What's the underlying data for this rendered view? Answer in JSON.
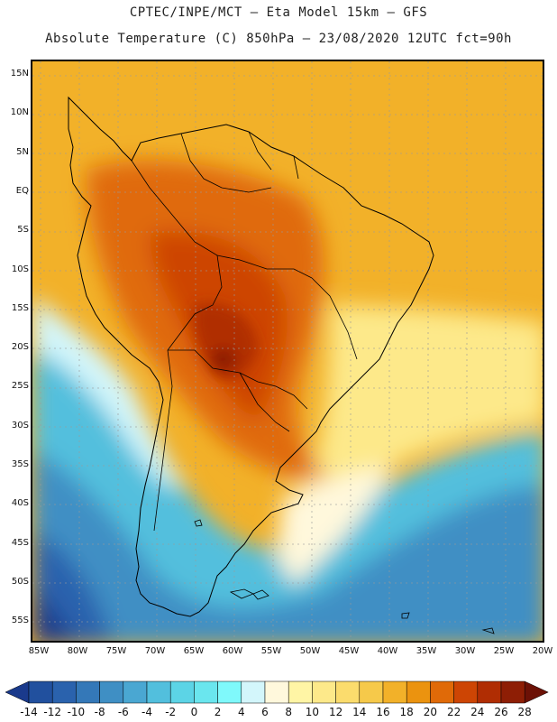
{
  "title": {
    "line1": "CPTEC/INPE/MCT –  Eta Model 15km – GFS",
    "line2": "Absolute Temperature (C) 850hPa – 23/08/2020 12UTC fct=90h"
  },
  "lat_labels": [
    "15N",
    "10N",
    "5N",
    "EQ",
    "5S",
    "10S",
    "15S",
    "20S",
    "25S",
    "30S",
    "35S",
    "40S",
    "45S",
    "50S",
    "55S"
  ],
  "lon_labels": [
    "85W",
    "80W",
    "75W",
    "70W",
    "65W",
    "60W",
    "55W",
    "50W",
    "45W",
    "40W",
    "35W",
    "30W",
    "25W",
    "20W"
  ],
  "colorbar": {
    "labels": [
      "-14",
      "-12",
      "-10",
      "-8",
      "-6",
      "-4",
      "-2",
      "0",
      "2",
      "4",
      "6",
      "8",
      "10",
      "12",
      "14",
      "16",
      "18",
      "20",
      "22",
      "24",
      "26",
      "28"
    ],
    "colors": [
      "#1a3a8c",
      "#21509e",
      "#2a62ad",
      "#3478b8",
      "#3f8fc4",
      "#4aa7d2",
      "#52bfdd",
      "#5cd4e6",
      "#6ae6ee",
      "#7ff9fb",
      "#d3f6fb",
      "#fff8dc",
      "#fff5a5",
      "#fde98a",
      "#fbdc6d",
      "#f6c94a",
      "#f2b129",
      "#eb930f",
      "#e06a08",
      "#cd4504",
      "#b02d03",
      "#8e1e05",
      "#6c1106"
    ]
  }
}
